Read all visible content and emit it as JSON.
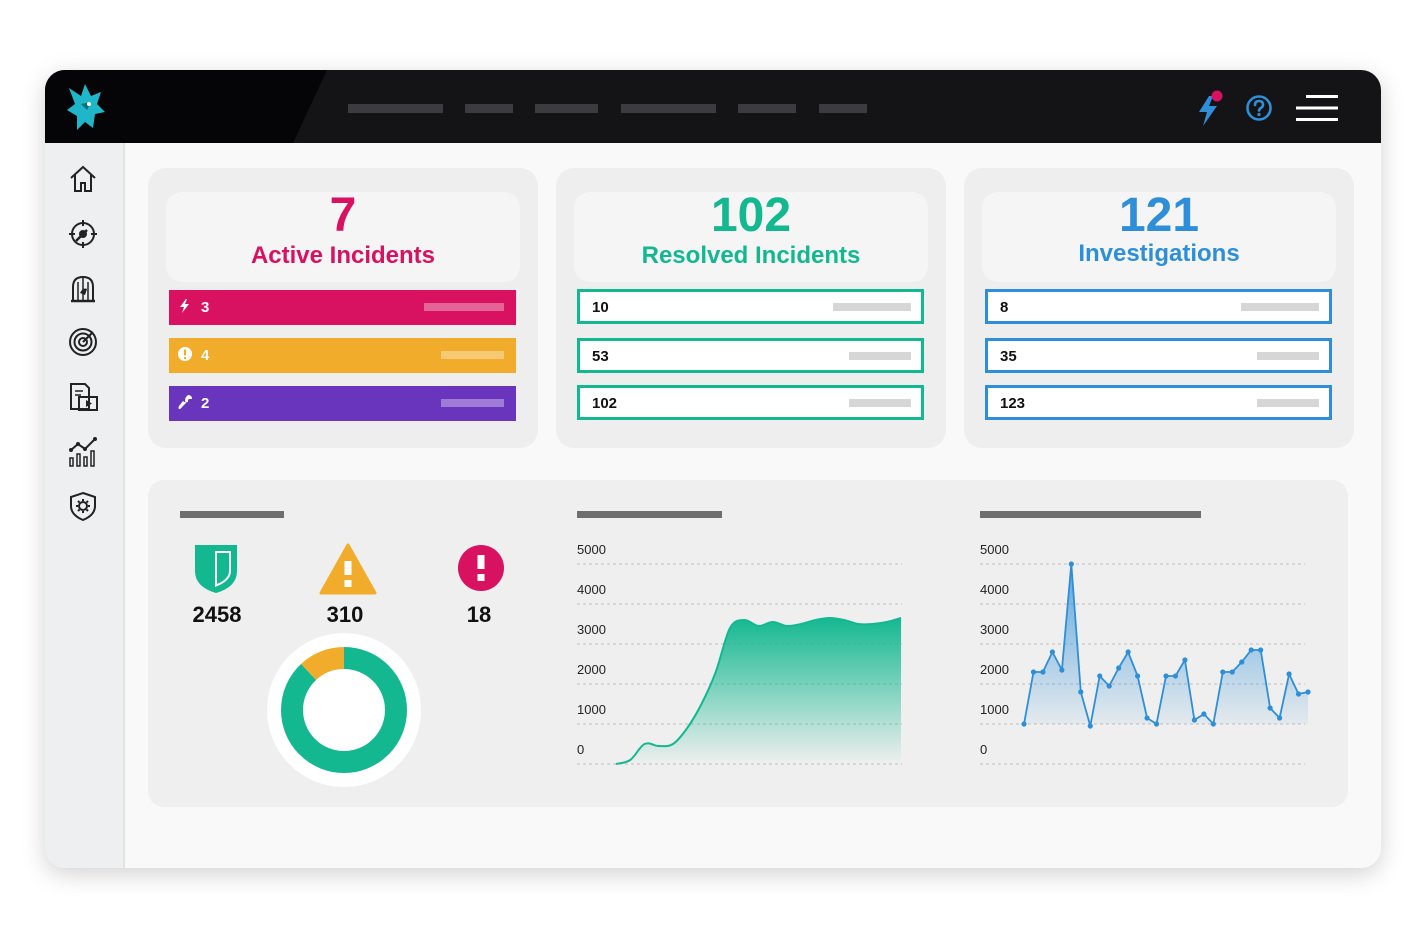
{
  "colors": {
    "accent_red": "#d81160",
    "accent_orange": "#f2ac2b",
    "accent_purple": "#6a35bd",
    "accent_green": "#14b890",
    "accent_blue": "#2e8fd8"
  },
  "header": {
    "logo_icon": "wolf-head-icon",
    "nav_items_count": 6,
    "icons": [
      "lightning-notification-icon",
      "help-icon",
      "menu-icon"
    ]
  },
  "sidebar": {
    "items": [
      {
        "icon": "home-icon"
      },
      {
        "icon": "target-icon"
      },
      {
        "icon": "birdcage-icon"
      },
      {
        "icon": "radar-icon"
      },
      {
        "icon": "video-report-icon"
      },
      {
        "icon": "analytics-icon"
      },
      {
        "icon": "shield-gear-icon"
      }
    ]
  },
  "cards": [
    {
      "number": "7",
      "label": "Active Incidents",
      "rows": [
        {
          "icon": "bolt-icon",
          "value": "3",
          "color": "#d81160"
        },
        {
          "icon": "alert-icon",
          "value": "4",
          "color": "#f2ac2b"
        },
        {
          "icon": "wrench-icon",
          "value": "2",
          "color": "#6a35bd"
        }
      ]
    },
    {
      "number": "102",
      "label": "Resolved Incidents",
      "rows": [
        {
          "value": "10"
        },
        {
          "value": "53"
        },
        {
          "value": "102"
        }
      ]
    },
    {
      "number": "121",
      "label": "Investigations",
      "rows": [
        {
          "value": "8"
        },
        {
          "value": "35"
        },
        {
          "value": "123"
        }
      ]
    }
  ],
  "stats": [
    {
      "icon": "shield-icon",
      "value": "2458"
    },
    {
      "icon": "warning-icon",
      "value": "310"
    },
    {
      "icon": "exclamation-circle-icon",
      "value": "18"
    }
  ],
  "chart_data": [
    {
      "type": "pie",
      "series": [
        {
          "values": [
            88,
            12
          ]
        }
      ],
      "colors": [
        "#14b890",
        "#f2ac2b"
      ]
    },
    {
      "type": "area",
      "ylim": [
        0,
        5000
      ],
      "yticks": [
        "5000",
        "4000",
        "3000",
        "2000",
        "1000",
        "0"
      ],
      "x": [
        0,
        1,
        2,
        3,
        4,
        5,
        6,
        7,
        8,
        9,
        10,
        11,
        12,
        13,
        14,
        15,
        16,
        17,
        18,
        19,
        20
      ],
      "values": [
        -200,
        100,
        500,
        450,
        500,
        900,
        1500,
        2300,
        3400,
        3600,
        3450,
        3550,
        3450,
        3500,
        3600,
        3650,
        3600,
        3500,
        3500,
        3550,
        3650
      ],
      "color": "#14b890"
    },
    {
      "type": "line",
      "ylim": [
        0,
        5000
      ],
      "yticks": [
        "5000",
        "4000",
        "3000",
        "2000",
        "1000",
        "0"
      ],
      "x": [
        0,
        1,
        2,
        3,
        4,
        5,
        6,
        7,
        8,
        9,
        10,
        11,
        12,
        13,
        14,
        15,
        16,
        17,
        18,
        19,
        20,
        21,
        22,
        23,
        24,
        25,
        26,
        27,
        28,
        29,
        30
      ],
      "values": [
        1000,
        2300,
        2300,
        2800,
        2350,
        5000,
        1800,
        950,
        2200,
        1950,
        2400,
        2800,
        2200,
        1150,
        1000,
        2200,
        2200,
        2600,
        1100,
        1250,
        1000,
        2300,
        2300,
        2550,
        2850,
        2850,
        1400,
        1150,
        2250,
        1750,
        1800
      ],
      "color": "#2e8fd8"
    }
  ]
}
